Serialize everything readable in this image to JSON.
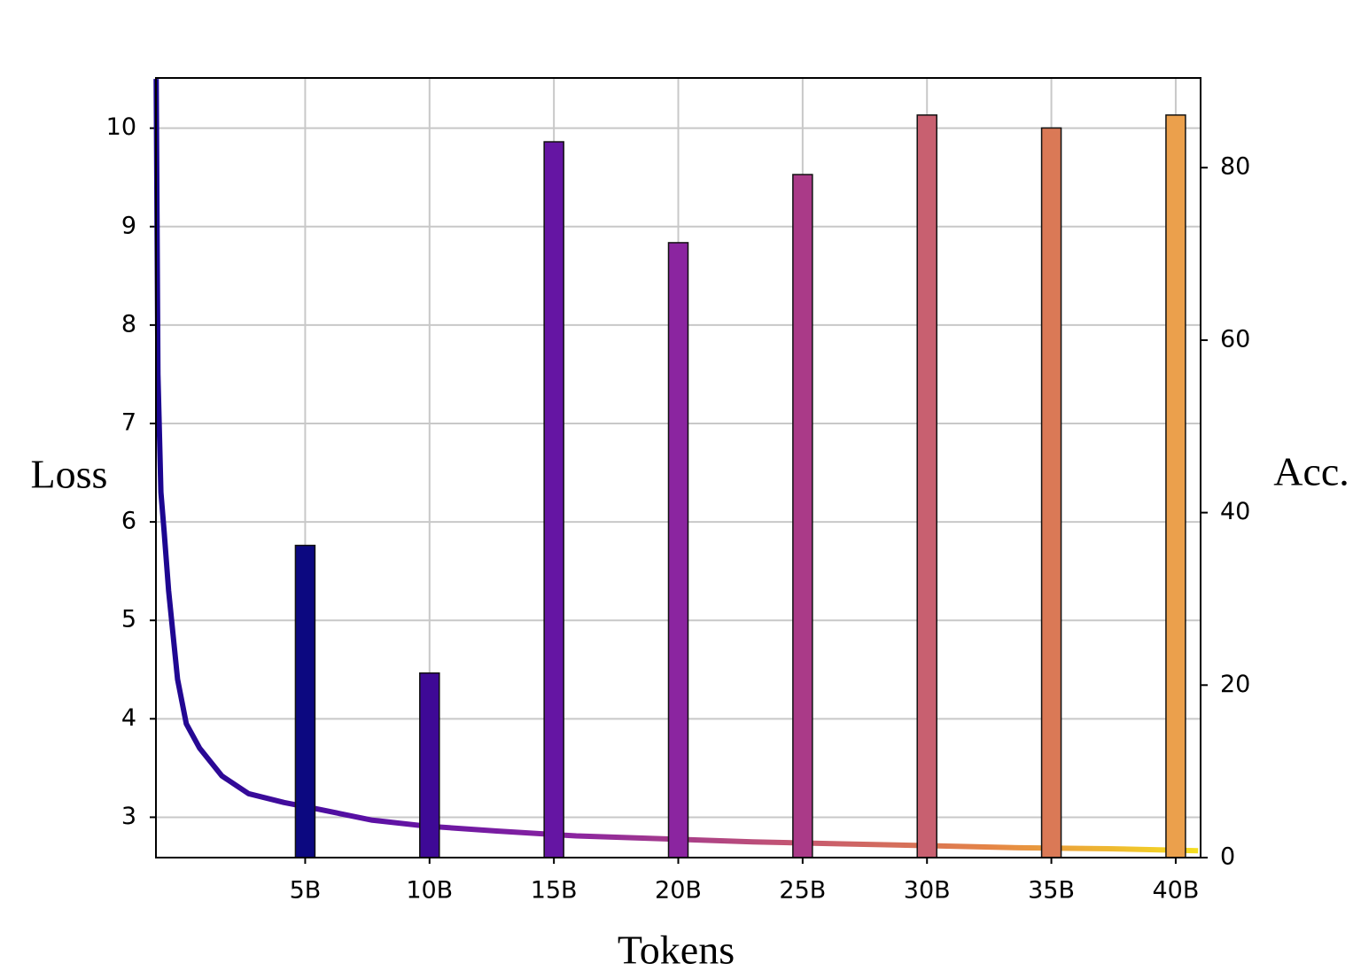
{
  "chart_data": {
    "type": "combo",
    "xlabel": "Tokens",
    "ylabel": "Loss",
    "y2label": "Acc.",
    "xlim": [
      -1,
      41
    ],
    "ylim": [
      2.59,
      10.51
    ],
    "y2lim": [
      0,
      90.4
    ],
    "xticks": [
      {
        "value": 5,
        "label": "5B"
      },
      {
        "value": 10,
        "label": "10B"
      },
      {
        "value": 15,
        "label": "15B"
      },
      {
        "value": 20,
        "label": "20B"
      },
      {
        "value": 25,
        "label": "25B"
      },
      {
        "value": 30,
        "label": "30B"
      },
      {
        "value": 35,
        "label": "35B"
      },
      {
        "value": 40,
        "label": "40B"
      }
    ],
    "yticks": [
      3,
      4,
      5,
      6,
      7,
      8,
      9,
      10
    ],
    "y2ticks": [
      0,
      20,
      40,
      60,
      80
    ],
    "grid": true,
    "series": [
      {
        "type": "line",
        "axis": "y",
        "x": [
          -0.99,
          -0.92,
          -0.8,
          -0.67,
          -0.49,
          -0.13,
          0.22,
          0.76,
          1.65,
          2.72,
          4.15,
          5.57,
          7.7,
          9.85,
          12.7,
          15.9,
          19.5,
          23.0,
          26.6,
          30.2,
          33.7,
          37.3,
          40.9
        ],
        "values": [
          10.5,
          7.5,
          6.3,
          5.9,
          5.3,
          4.4,
          3.95,
          3.7,
          3.42,
          3.24,
          3.15,
          3.08,
          2.97,
          2.91,
          2.86,
          2.81,
          2.78,
          2.75,
          2.73,
          2.71,
          2.69,
          2.68,
          2.66
        ],
        "gradient": [
          "#1a0690",
          "#5a10a4",
          "#8b25a0",
          "#c25474",
          "#e58546",
          "#f5e020"
        ]
      },
      {
        "type": "bar",
        "axis": "y2",
        "x": [
          5,
          10,
          15,
          20,
          25,
          30,
          35,
          40
        ],
        "values": [
          36.2,
          21.4,
          83.0,
          71.3,
          79.2,
          86.1,
          84.6,
          86.1
        ],
        "colors": [
          "#0c0880",
          "#3e0996",
          "#6515a3",
          "#8b25a0",
          "#aa3a88",
          "#c86070",
          "#da7956",
          "#eba04c"
        ]
      }
    ]
  }
}
